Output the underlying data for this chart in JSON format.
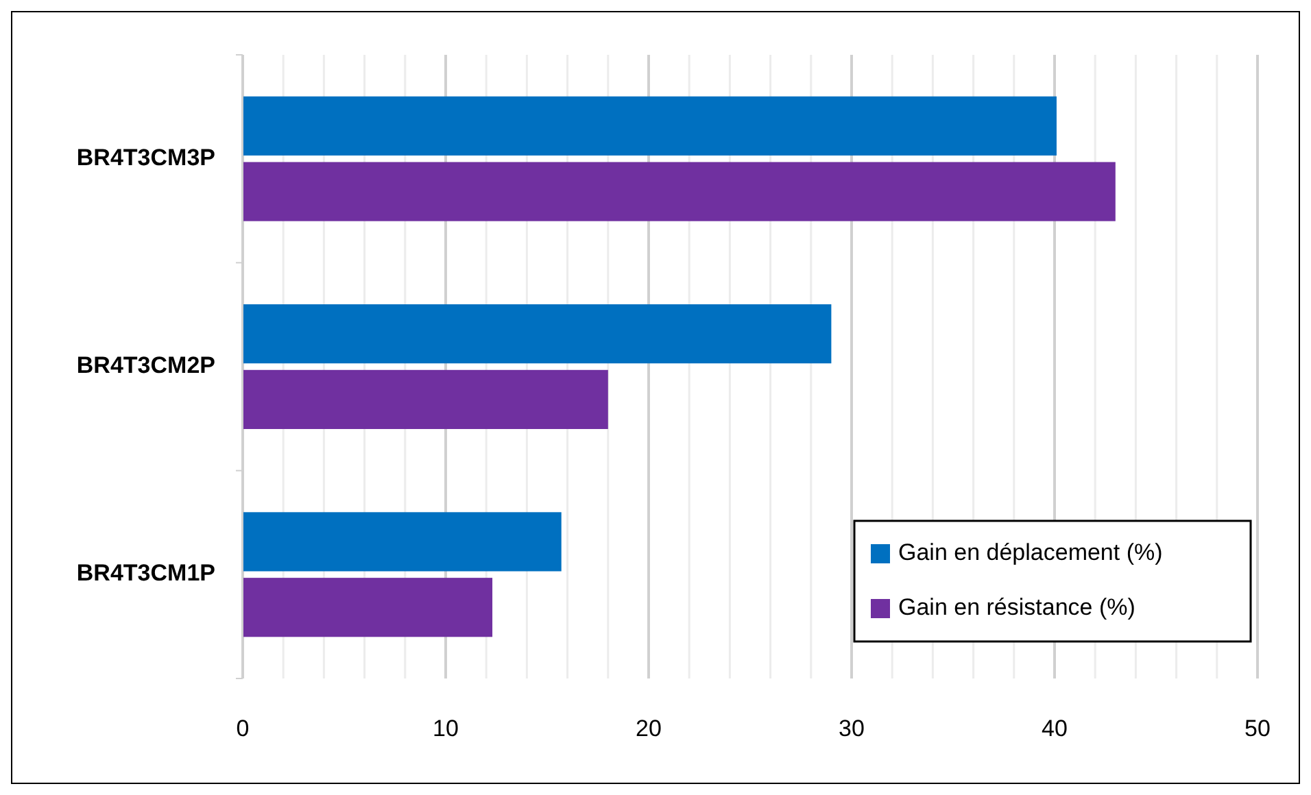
{
  "chart_data": {
    "type": "bar",
    "orientation": "horizontal",
    "categories": [
      "BR4T3CM3P",
      "BR4T3CM2P",
      "BR4T3CM1P"
    ],
    "series": [
      {
        "name": "Gain en déplacement (%)",
        "color": "#0070c0",
        "values": [
          40.1,
          29.0,
          15.7
        ]
      },
      {
        "name": "Gain en résistance (%)",
        "color": "#7030a0",
        "values": [
          43.0,
          18.0,
          12.3
        ]
      }
    ],
    "xlim": [
      0,
      50
    ],
    "xticks": [
      0,
      {
        "value": 2,
        "label": null
      },
      {
        "value": 4,
        "label": null
      },
      {
        "value": 6,
        "label": null
      },
      {
        "value": 8,
        "label": null
      },
      10,
      {
        "value": 12,
        "label": null
      },
      {
        "value": 14,
        "label": null
      },
      {
        "value": 16,
        "label": null
      },
      {
        "value": 18,
        "label": null
      },
      20,
      {
        "value": 22,
        "label": null
      },
      {
        "value": 24,
        "label": null
      },
      {
        "value": 26,
        "label": null
      },
      {
        "value": 28,
        "label": null
      },
      30,
      {
        "value": 32,
        "label": null
      },
      {
        "value": 34,
        "label": null
      },
      {
        "value": 36,
        "label": null
      },
      {
        "value": 38,
        "label": null
      },
      40,
      {
        "value": 42,
        "label": null
      },
      {
        "value": 44,
        "label": null
      },
      {
        "value": 46,
        "label": null
      },
      {
        "value": 48,
        "label": null
      },
      50
    ],
    "grid": true,
    "legend": "bottom right"
  }
}
